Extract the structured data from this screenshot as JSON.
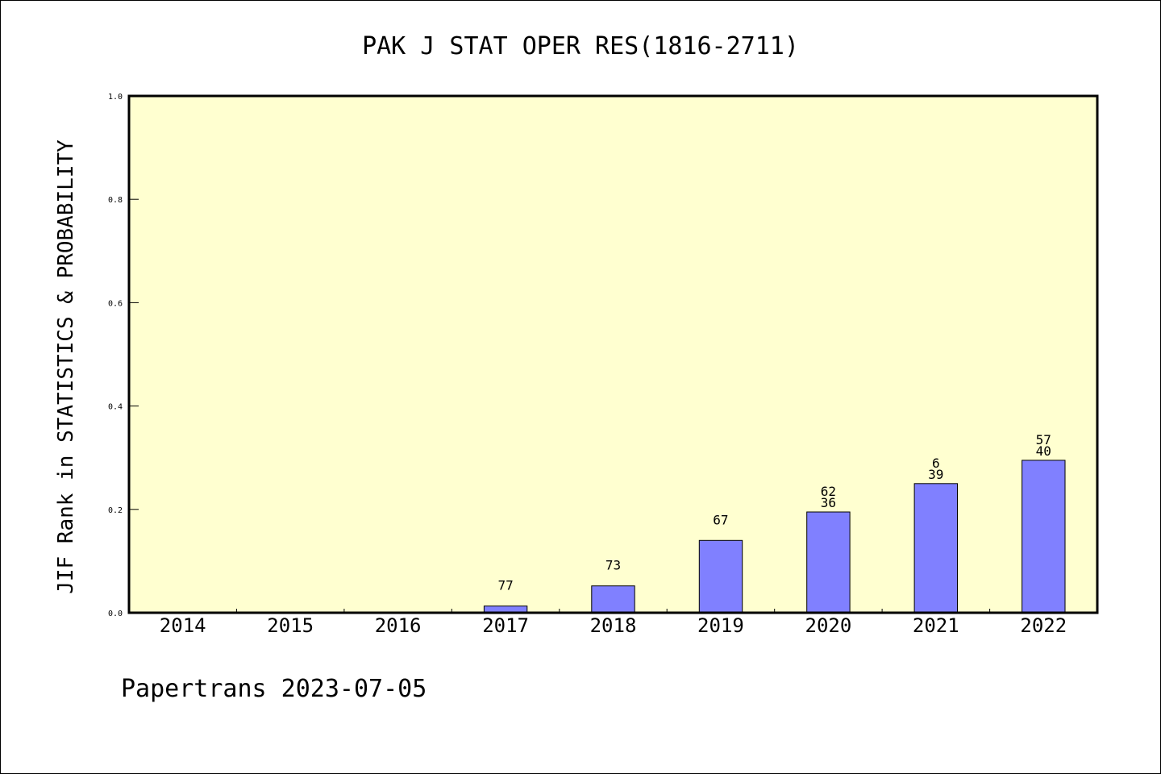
{
  "chart_data": {
    "type": "bar",
    "title": "PAK J STAT OPER RES(1816-2711)",
    "xlabel": "",
    "ylabel": "JIF Rank in STATISTICS & PROBABILITY",
    "ylim": [
      0,
      1.0
    ],
    "yticks": [
      "0.0",
      "0.2",
      "0.4",
      "0.6",
      "0.8",
      "1.0"
    ],
    "categories": [
      "2014",
      "2015",
      "2016",
      "2017",
      "2018",
      "2019",
      "2020",
      "2021",
      "2022"
    ],
    "values": [
      0,
      0,
      0,
      0.013,
      0.052,
      0.14,
      0.195,
      0.25,
      0.295
    ],
    "bar_labels": [
      [],
      [],
      [],
      [
        "77"
      ],
      [
        "73"
      ],
      [
        "67"
      ],
      [
        "62",
        "36"
      ],
      [
        "6",
        "39"
      ],
      [
        "57",
        "40"
      ]
    ],
    "grid": false,
    "colors": {
      "bar_fill": "#8080ff",
      "plot_background": "#ffffd0"
    }
  },
  "footer": "Papertrans 2023-07-05"
}
